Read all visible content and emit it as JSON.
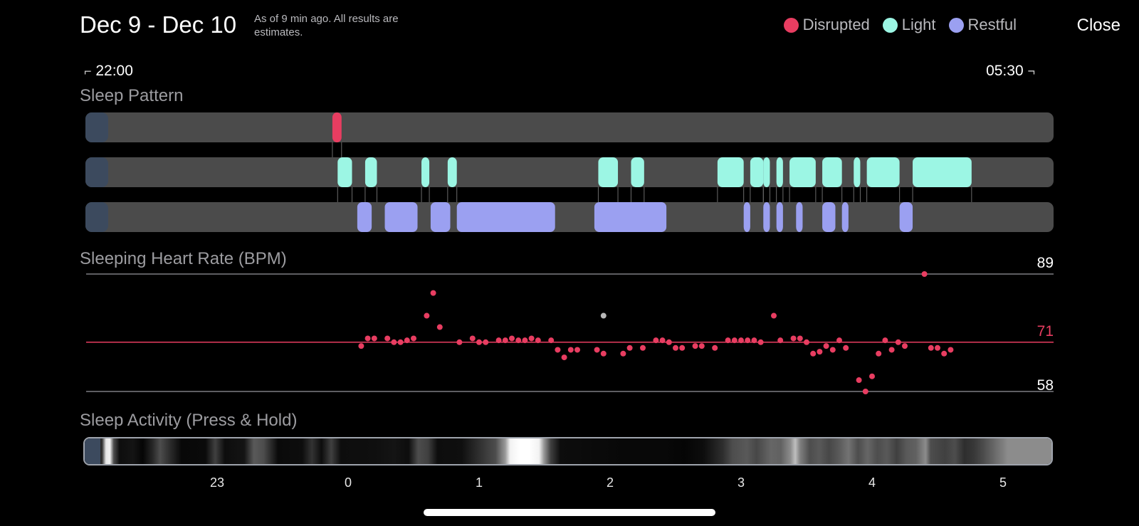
{
  "header": {
    "title": "Dec 9 - Dec 10",
    "subtitle": "As of 9 min ago. All results are estimates.",
    "close_label": "Close"
  },
  "legend": [
    {
      "label": "Disrupted",
      "color": "#e83d61"
    },
    {
      "label": "Light",
      "color": "#9cf6e4"
    },
    {
      "label": "Restful",
      "color": "#9ba0f1"
    }
  ],
  "time_range": {
    "start": "22:00",
    "end": "05:30"
  },
  "sleep_pattern": {
    "title": "Sleep Pattern",
    "track_color": "#4b4b4b",
    "handle_color": "#3c4a5e",
    "disrupted": [
      [
        1.88,
        1.95
      ]
    ],
    "light": [
      [
        1.92,
        2.03
      ],
      [
        2.13,
        2.22
      ],
      [
        2.56,
        2.62
      ],
      [
        2.76,
        2.83
      ],
      [
        3.91,
        4.06
      ],
      [
        4.16,
        4.26
      ],
      [
        4.82,
        5.02
      ],
      [
        5.07,
        5.17
      ],
      [
        5.17,
        5.22
      ],
      [
        5.27,
        5.32
      ],
      [
        5.37,
        5.57
      ],
      [
        5.62,
        5.77
      ],
      [
        5.86,
        5.91
      ],
      [
        5.96,
        6.21
      ],
      [
        6.31,
        6.76
      ]
    ],
    "restful": [
      [
        2.07,
        2.18
      ],
      [
        2.28,
        2.53
      ],
      [
        2.63,
        2.78
      ],
      [
        2.83,
        3.58
      ],
      [
        3.88,
        4.43
      ],
      [
        5.02,
        5.07
      ],
      [
        5.17,
        5.22
      ],
      [
        5.27,
        5.32
      ],
      [
        5.42,
        5.47
      ],
      [
        5.62,
        5.72
      ],
      [
        5.77,
        5.82
      ],
      [
        6.21,
        6.31
      ]
    ]
  },
  "heart_rate": {
    "title": "Sleeping Heart Rate (BPM)",
    "max": 89,
    "avg": 71,
    "min": 58,
    "color": "#e83d61",
    "points": [
      [
        2.1,
        70
      ],
      [
        2.15,
        72
      ],
      [
        2.2,
        72
      ],
      [
        2.3,
        72
      ],
      [
        2.35,
        71
      ],
      [
        2.4,
        71
      ],
      [
        2.45,
        71.5
      ],
      [
        2.5,
        72
      ],
      [
        2.6,
        78
      ],
      [
        2.65,
        84
      ],
      [
        2.7,
        75
      ],
      [
        2.85,
        71
      ],
      [
        2.95,
        72
      ],
      [
        3.0,
        71
      ],
      [
        3.05,
        71
      ],
      [
        3.15,
        71.5
      ],
      [
        3.2,
        71.5
      ],
      [
        3.25,
        72
      ],
      [
        3.3,
        71.5
      ],
      [
        3.35,
        71.5
      ],
      [
        3.4,
        72
      ],
      [
        3.45,
        71.5
      ],
      [
        3.55,
        71.5
      ],
      [
        3.6,
        69
      ],
      [
        3.65,
        67
      ],
      [
        3.7,
        69
      ],
      [
        3.75,
        69
      ],
      [
        3.9,
        69
      ],
      [
        3.95,
        68
      ],
      [
        4.1,
        68
      ],
      [
        4.15,
        69.5
      ],
      [
        4.25,
        69.5
      ],
      [
        4.35,
        71.5
      ],
      [
        4.4,
        71.5
      ],
      [
        4.45,
        71
      ],
      [
        4.5,
        69.5
      ],
      [
        4.55,
        69.5
      ],
      [
        4.65,
        70
      ],
      [
        4.7,
        70
      ],
      [
        4.8,
        69.5
      ],
      [
        4.9,
        71.5
      ],
      [
        4.95,
        71.5
      ],
      [
        5.0,
        71.5
      ],
      [
        5.05,
        71.5
      ],
      [
        5.1,
        71.5
      ],
      [
        5.15,
        71
      ],
      [
        5.25,
        78
      ],
      [
        5.3,
        71.5
      ],
      [
        5.4,
        72
      ],
      [
        5.45,
        72
      ],
      [
        5.5,
        71
      ],
      [
        5.55,
        68
      ],
      [
        5.6,
        68.5
      ],
      [
        5.65,
        70
      ],
      [
        5.7,
        69
      ],
      [
        5.75,
        71.5
      ],
      [
        5.8,
        69.5
      ],
      [
        5.9,
        61
      ],
      [
        5.95,
        58
      ],
      [
        6.0,
        62
      ],
      [
        6.05,
        68
      ],
      [
        6.1,
        71.5
      ],
      [
        6.15,
        69
      ],
      [
        6.2,
        71
      ],
      [
        6.25,
        70
      ],
      [
        6.4,
        89
      ],
      [
        6.45,
        69.5
      ],
      [
        6.5,
        69.5
      ],
      [
        6.55,
        68
      ],
      [
        6.6,
        69
      ]
    ],
    "gray_points": [
      [
        3.95,
        78
      ]
    ]
  },
  "sleep_activity": {
    "title": "Sleep Activity (Press & Hold)",
    "stops": [
      [
        0.0,
        0.0
      ],
      [
        0.012,
        0.0
      ],
      [
        0.018,
        0.2
      ],
      [
        0.022,
        0.9
      ],
      [
        0.026,
        0.95
      ],
      [
        0.03,
        0.3
      ],
      [
        0.036,
        0.05
      ],
      [
        0.05,
        0.08
      ],
      [
        0.06,
        0.02
      ],
      [
        0.07,
        0.15
      ],
      [
        0.078,
        0.3
      ],
      [
        0.086,
        0.2
      ],
      [
        0.1,
        0.03
      ],
      [
        0.125,
        0.04
      ],
      [
        0.135,
        0.25
      ],
      [
        0.145,
        0.05
      ],
      [
        0.165,
        0.08
      ],
      [
        0.175,
        0.35
      ],
      [
        0.185,
        0.3
      ],
      [
        0.2,
        0.04
      ],
      [
        0.225,
        0.05
      ],
      [
        0.235,
        0.2
      ],
      [
        0.245,
        0.05
      ],
      [
        0.255,
        0.25
      ],
      [
        0.265,
        0.05
      ],
      [
        0.3,
        0.06
      ],
      [
        0.32,
        0.08
      ],
      [
        0.335,
        0.05
      ],
      [
        0.345,
        0.3
      ],
      [
        0.355,
        0.25
      ],
      [
        0.365,
        0.05
      ],
      [
        0.39,
        0.06
      ],
      [
        0.41,
        0.2
      ],
      [
        0.425,
        0.3
      ],
      [
        0.435,
        0.6
      ],
      [
        0.44,
        0.95
      ],
      [
        0.45,
        1.0
      ],
      [
        0.46,
        1.0
      ],
      [
        0.47,
        0.95
      ],
      [
        0.475,
        0.6
      ],
      [
        0.482,
        0.25
      ],
      [
        0.492,
        0.05
      ],
      [
        0.56,
        0.03
      ],
      [
        0.6,
        0.03
      ],
      [
        0.62,
        0.02
      ],
      [
        0.64,
        0.05
      ],
      [
        0.66,
        0.18
      ],
      [
        0.67,
        0.3
      ],
      [
        0.685,
        0.35
      ],
      [
        0.695,
        0.28
      ],
      [
        0.71,
        0.4
      ],
      [
        0.72,
        0.38
      ],
      [
        0.73,
        0.55
      ],
      [
        0.735,
        0.75
      ],
      [
        0.74,
        0.5
      ],
      [
        0.75,
        0.3
      ],
      [
        0.76,
        0.35
      ],
      [
        0.77,
        0.28
      ],
      [
        0.78,
        0.35
      ],
      [
        0.79,
        0.45
      ],
      [
        0.8,
        0.3
      ],
      [
        0.81,
        0.4
      ],
      [
        0.82,
        0.3
      ],
      [
        0.83,
        0.35
      ],
      [
        0.84,
        0.25
      ],
      [
        0.85,
        0.35
      ],
      [
        0.86,
        0.38
      ],
      [
        0.87,
        0.55
      ],
      [
        0.875,
        0.3
      ],
      [
        0.89,
        0.25
      ],
      [
        0.9,
        0.3
      ],
      [
        0.91,
        0.18
      ],
      [
        0.92,
        0.22
      ],
      [
        0.93,
        0.3
      ],
      [
        0.945,
        0.45
      ],
      [
        0.955,
        0.55
      ],
      [
        1.0,
        0.55
      ]
    ]
  },
  "axis": {
    "ticks": [
      {
        "label": "23",
        "x": 1
      },
      {
        "label": "0",
        "x": 2
      },
      {
        "label": "1",
        "x": 3
      },
      {
        "label": "2",
        "x": 4
      },
      {
        "label": "3",
        "x": 5
      },
      {
        "label": "4",
        "x": 6
      },
      {
        "label": "5",
        "x": 7
      }
    ]
  }
}
